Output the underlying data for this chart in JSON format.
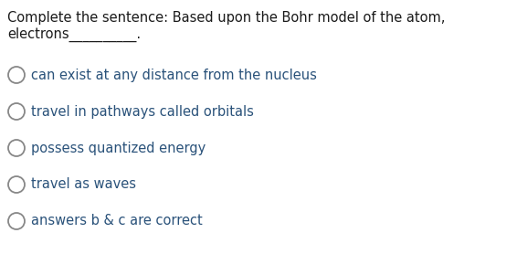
{
  "background_color": "#ffffff",
  "question_line1": "Complete the sentence: Based upon the Bohr model of the atom,",
  "question_line2": "electrons__________.",
  "options": [
    "can exist at any distance from the nucleus",
    "travel in pathways called orbitals",
    "possess quantized energy",
    "travel as waves",
    "answers b & c are correct"
  ],
  "question_color": "#1a1a1a",
  "option_color": "#2a527a",
  "circle_edge_color": "#888888",
  "question_fontsize": 10.5,
  "option_fontsize": 10.5,
  "fig_width": 5.66,
  "fig_height": 2.78,
  "dpi": 100
}
